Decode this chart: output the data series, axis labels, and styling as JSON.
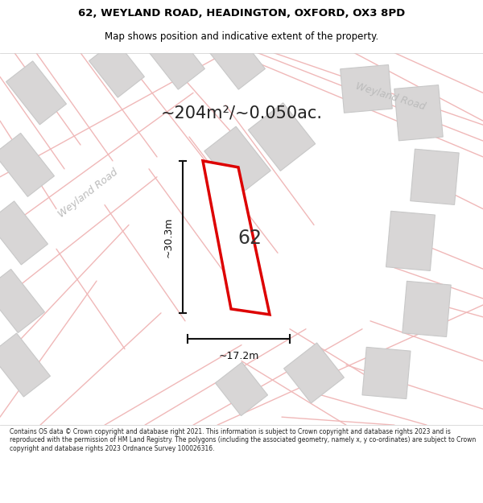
{
  "title_line1": "62, WEYLAND ROAD, HEADINGTON, OXFORD, OX3 8PD",
  "title_line2": "Map shows position and indicative extent of the property.",
  "area_text": "~204m²/~0.050ac.",
  "label_62": "62",
  "dim_height": "~30.3m",
  "dim_width": "~17.2m",
  "road_label_left": "Weyland Road",
  "road_label_top": "Weyland Road",
  "footer_text": "Contains OS data © Crown copyright and database right 2021. This information is subject to Crown copyright and database rights 2023 and is reproduced with the permission of HM Land Registry. The polygons (including the associated geometry, namely x, y co-ordinates) are subject to Crown copyright and database rights 2023 Ordnance Survey 100026316.",
  "map_bg": "#f5f2f2",
  "plot_fill": "#ffffff",
  "plot_edge": "#dd0000",
  "building_fill": "#d8d6d6",
  "building_edge": "#c8c8c8",
  "road_line_color": "#f0b8b8",
  "road_label_color": "#bbbbbb",
  "title_color": "#000000",
  "footer_color": "#222222",
  "dim_color": "#111111"
}
